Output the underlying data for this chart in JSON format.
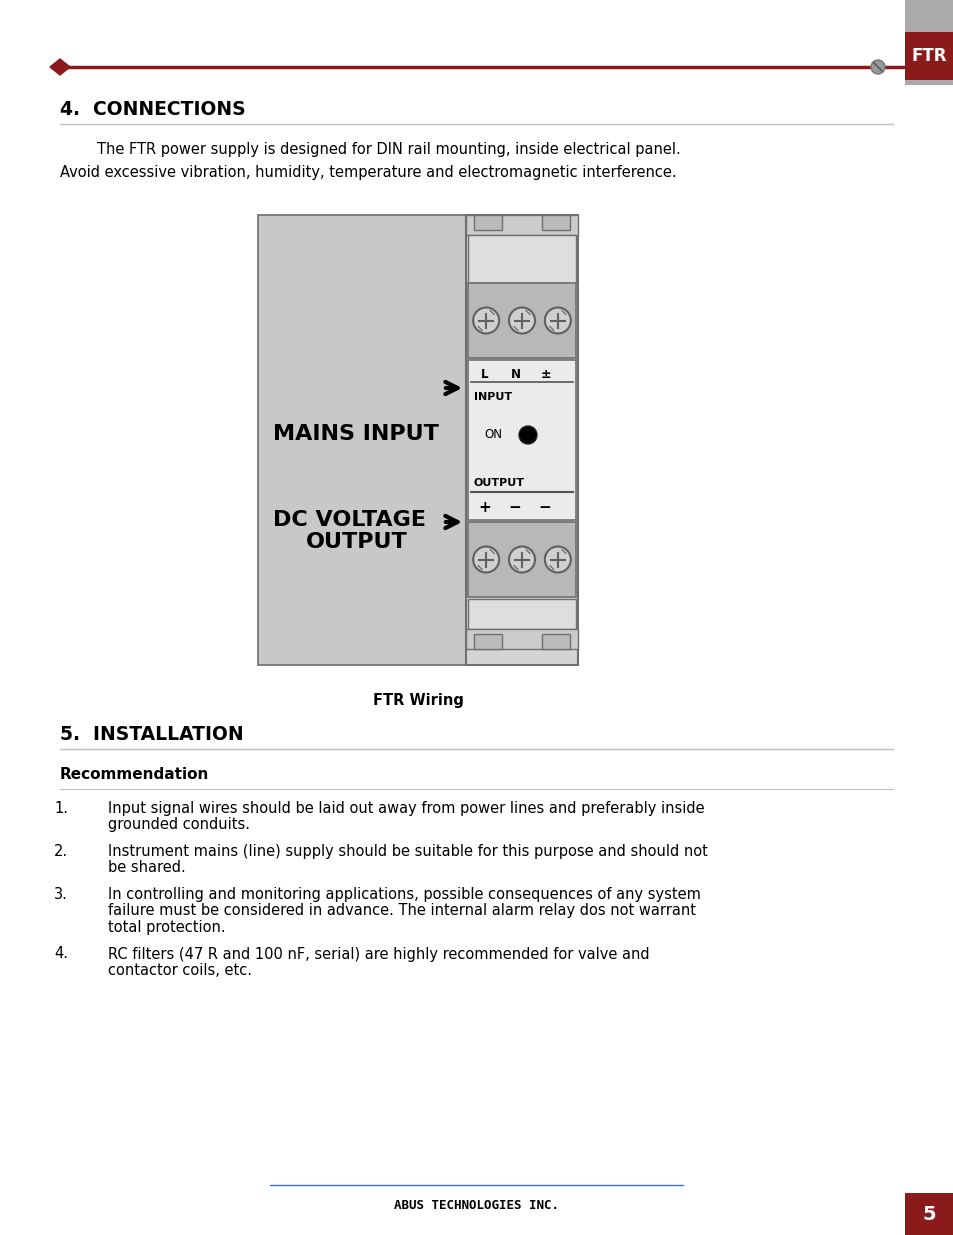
{
  "page_bg": "#ffffff",
  "dark_red": "#8B1A1A",
  "light_gray_line": "#C0C0C0",
  "blue_line": "#4472C4",
  "section4_title": "4.  CONNECTIONS",
  "section4_intro1": "        The FTR power supply is designed for DIN rail mounting, inside electrical panel.",
  "section4_intro2": "Avoid excessive vibration, humidity, temperature and electromagnetic interference.",
  "diagram_caption": "FTR Wiring",
  "mains_input_label1": "MAINS INPUT",
  "dc_voltage_label1": "DC VOLTAGE",
  "dc_voltage_label2": "OUTPUT",
  "section5_title": "5.  INSTALLATION",
  "recommendation_title": "Recommendation",
  "item1_num": "1.",
  "item1_line1": "Input signal wires should be laid out away from power lines and preferably inside",
  "item1_line2": "grounded conduits.",
  "item2_num": "2.",
  "item2_line1": "Instrument mains (line) supply should be suitable for this purpose and should not",
  "item2_line2": "be shared.",
  "item3_num": "3.",
  "item3_line1": "In controlling and monitoring applications, possible consequences of any system",
  "item3_line2": "failure must be considered in advance. The internal alarm relay dos not warrant",
  "item3_line3": "total protection.",
  "item4_num": "4.",
  "item4_line1": "RC filters (47 R and 100 nF, serial) are highly recommended for valve and",
  "item4_line2": "contactor coils, etc.",
  "footer_text": "ABUS TECHNOLOGIES INC.",
  "page_number": "5",
  "ftr_tab_text": "FTR",
  "diagram_bg": "#C8C8C8",
  "panel_bg": "#D4D4D4",
  "connector_bg": "#B8B8B8",
  "input_section_bg": "#EBEBEB",
  "gray_tab_color": "#AAAAAA"
}
